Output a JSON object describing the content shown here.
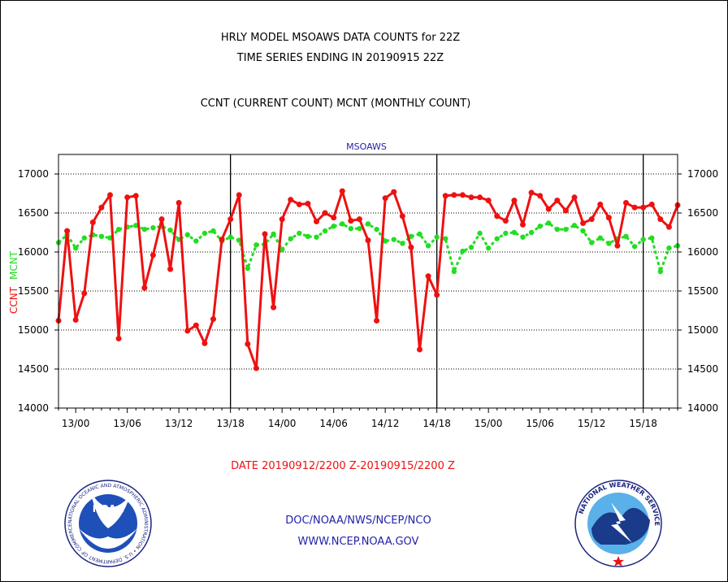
{
  "header": {
    "title_line1": "HRLY MODEL MSOAWS DATA COUNTS for 22Z",
    "title_line2": "TIME SERIES ENDING IN 20190915 22Z",
    "subtitle": "CCNT (CURRENT COUNT) MCNT (MONTHLY COUNT)"
  },
  "footer": {
    "date_range": "DATE 20190912/2200 Z-20190915/2200 Z",
    "agency": "DOC/NOAA/NWS/NCEP/NCO",
    "url": "WWW.NCEP.NOAA.GOV"
  },
  "logos": {
    "noaa_text": "NOAA",
    "noaa_ring": "NATIONAL OCEANIC AND ATMOSPHERIC ADMINISTRATION • U.S. DEPARTMENT OF COMMERCE •",
    "nws_ring": "NATIONAL WEATHER SERVICE"
  },
  "colors": {
    "ccnt": "#ee1111",
    "mcnt": "#22dd22",
    "label_blue": "#2222aa",
    "date_red": "#ee1111"
  },
  "chart_data": {
    "type": "line",
    "title": "MSOAWS",
    "ylabel_left": "CCNT",
    "ylabel_right": "MCNT",
    "ylim": [
      14000,
      17250
    ],
    "yticks": [
      14000,
      14500,
      15000,
      15500,
      16000,
      16500,
      17000
    ],
    "x_hours_range": [
      0,
      72
    ],
    "xticks": [
      {
        "hour": 2,
        "label": "13/00"
      },
      {
        "hour": 8,
        "label": "13/06"
      },
      {
        "hour": 14,
        "label": "13/12"
      },
      {
        "hour": 20,
        "label": "13/18"
      },
      {
        "hour": 26,
        "label": "14/00"
      },
      {
        "hour": 32,
        "label": "14/06"
      },
      {
        "hour": 38,
        "label": "14/12"
      },
      {
        "hour": 44,
        "label": "14/18"
      },
      {
        "hour": 50,
        "label": "15/00"
      },
      {
        "hour": 56,
        "label": "15/06"
      },
      {
        "hour": 62,
        "label": "15/12"
      },
      {
        "hour": 68,
        "label": "15/18"
      }
    ],
    "day_lines": [
      20,
      44,
      68
    ],
    "series": [
      {
        "name": "CCNT",
        "values": [
          15120,
          16270,
          15130,
          15470,
          16380,
          16570,
          16730,
          14890,
          16700,
          16720,
          15540,
          15960,
          16420,
          15780,
          16630,
          14990,
          15060,
          14830,
          15140,
          16160,
          16420,
          16730,
          14820,
          14510,
          16230,
          15290,
          16420,
          16670,
          16610,
          16620,
          16390,
          16500,
          16440,
          16780,
          16400,
          16420,
          16150,
          15120,
          16690,
          16770,
          16460,
          16060,
          14750,
          15690,
          15450,
          16720,
          16730,
          16730,
          16700,
          16700,
          16660,
          16460,
          16400,
          16660,
          16350,
          16760,
          16720,
          16550,
          16660,
          16530,
          16700,
          16370,
          16420,
          16610,
          16440,
          16080,
          16630,
          16570,
          16570,
          16610,
          16420,
          16320,
          16600
        ]
      },
      {
        "name": "MCNT",
        "values": [
          16120,
          16220,
          16050,
          16180,
          16220,
          16200,
          16180,
          16290,
          16320,
          16340,
          16290,
          16310,
          16330,
          16280,
          16160,
          16220,
          16140,
          16240,
          16270,
          16140,
          16190,
          16150,
          15790,
          16090,
          16100,
          16230,
          16030,
          16170,
          16240,
          16200,
          16190,
          16270,
          16330,
          16360,
          16300,
          16300,
          16360,
          16290,
          16140,
          16160,
          16110,
          16200,
          16230,
          16080,
          16190,
          16170,
          15750,
          16010,
          16060,
          16240,
          16050,
          16170,
          16240,
          16250,
          16190,
          16250,
          16330,
          16370,
          16290,
          16290,
          16340,
          16270,
          16120,
          16180,
          16110,
          16170,
          16200,
          16070,
          16160,
          16180,
          15750,
          16050,
          16080
        ]
      }
    ]
  }
}
